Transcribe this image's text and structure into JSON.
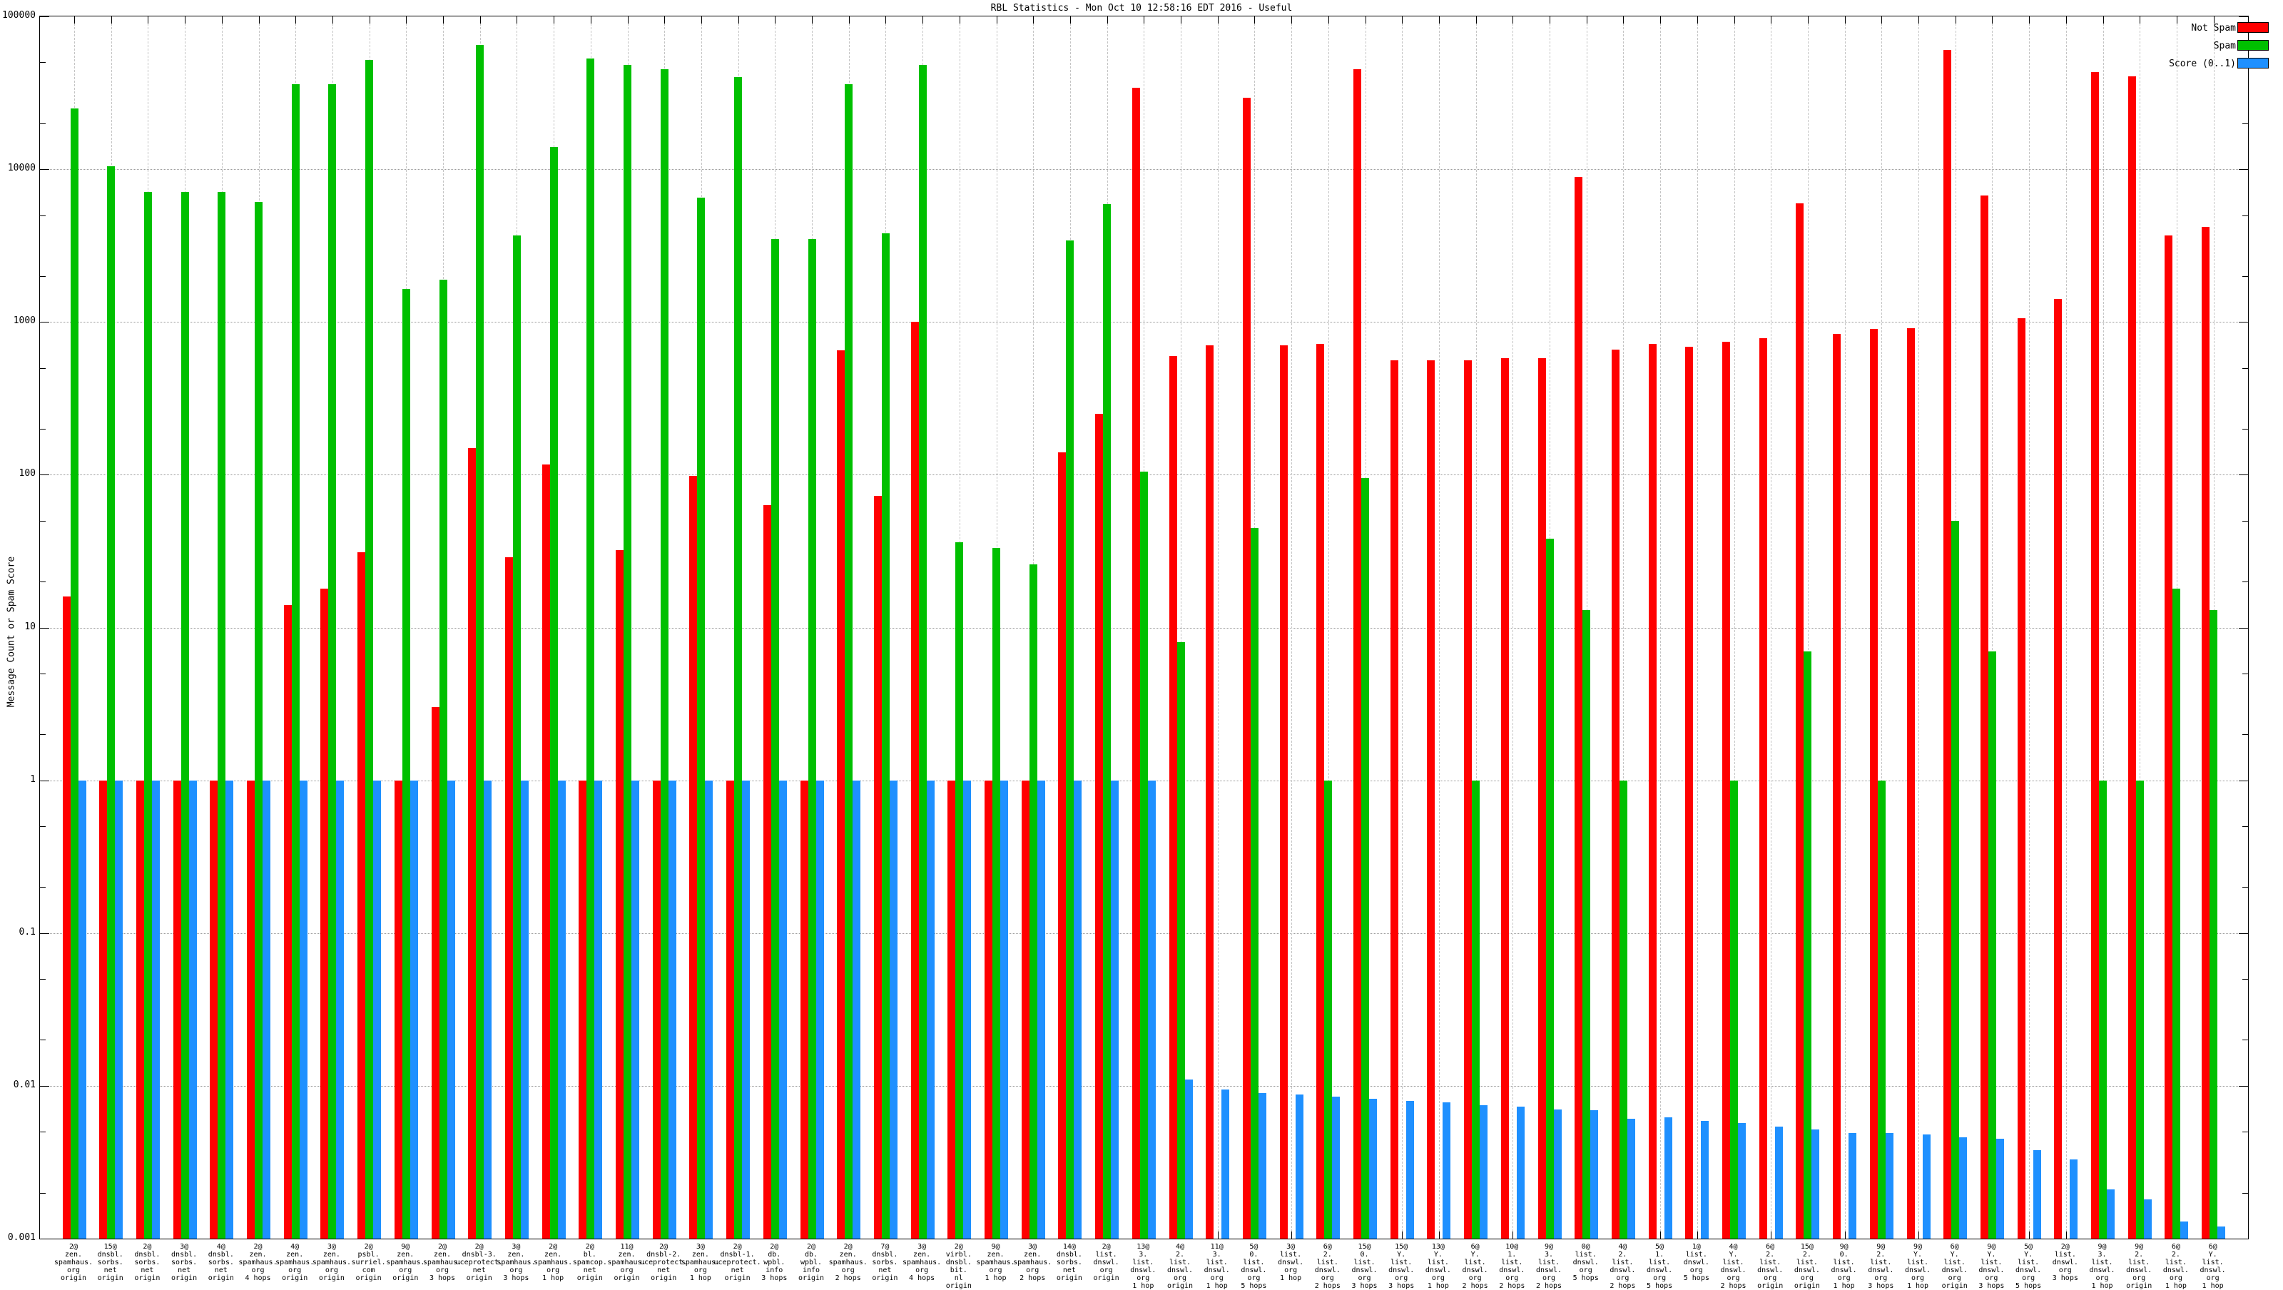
{
  "window": {
    "title": "RBL Statistics - Mon Oct 10 12:58:16 EDT 2016 - Useful"
  },
  "chart_data": {
    "type": "bar",
    "title": "RBL Statistics - Mon Oct 10 12:58:16 EDT 2016 - Useful",
    "ylabel": "Message Count or Spam Score",
    "xlabel": "",
    "yscale": "log",
    "ylim": [
      0.001,
      100000
    ],
    "ytick_labels": [
      "100000",
      "10000",
      "1000",
      "100",
      "10",
      "1",
      "0.1",
      "0.01",
      "0.001"
    ],
    "grid": true,
    "legend_position": "top-right",
    "colors": {
      "not_spam": "#ff0000",
      "spam": "#00c000",
      "score": "#1e90ff",
      "grid": "#9a9a9a"
    },
    "series": [
      {
        "name": "Not Spam",
        "key": "not_spam",
        "color": "#ff0000"
      },
      {
        "name": "Spam",
        "key": "spam",
        "color": "#00c000"
      },
      {
        "name": "Score (0..1)",
        "key": "score",
        "color": "#1e90ff"
      }
    ],
    "groups": [
      {
        "label": [
          "2@",
          "zen.",
          "spamhaus.",
          "org",
          "origin"
        ],
        "not_spam": 16,
        "spam": 25000,
        "score": 1
      },
      {
        "label": [
          "15@",
          "dnsbl.",
          "sorbs.",
          "net",
          "origin"
        ],
        "not_spam": 1,
        "spam": 10500,
        "score": 1
      },
      {
        "label": [
          "2@",
          "dnsbl.",
          "sorbs.",
          "net",
          "origin"
        ],
        "not_spam": 1,
        "spam": 7100,
        "score": 1
      },
      {
        "label": [
          "3@",
          "dnsbl.",
          "sorbs.",
          "net",
          "origin"
        ],
        "not_spam": 1,
        "spam": 7100,
        "score": 1
      },
      {
        "label": [
          "4@",
          "dnsbl.",
          "sorbs.",
          "net",
          "origin"
        ],
        "not_spam": 1,
        "spam": 7100,
        "score": 1
      },
      {
        "label": [
          "2@",
          "zen.",
          "spamhaus.",
          "org",
          "4 hops"
        ],
        "not_spam": 1,
        "spam": 6100,
        "score": 1
      },
      {
        "label": [
          "4@",
          "zen.",
          "spamhaus.",
          "org",
          "origin"
        ],
        "not_spam": 14,
        "spam": 36000,
        "score": 1
      },
      {
        "label": [
          "3@",
          "zen.",
          "spamhaus.",
          "org",
          "origin"
        ],
        "not_spam": 18,
        "spam": 36000,
        "score": 1
      },
      {
        "label": [
          "2@",
          "psbl.",
          "surriel.",
          "com",
          "origin"
        ],
        "not_spam": 31,
        "spam": 52000,
        "score": 1
      },
      {
        "label": [
          "9@",
          "zen.",
          "spamhaus.",
          "org",
          "origin"
        ],
        "not_spam": 1,
        "spam": 1650,
        "score": 1
      },
      {
        "label": [
          "2@",
          "zen.",
          "spamhaus.",
          "org",
          "3 hops"
        ],
        "not_spam": 3,
        "spam": 1900,
        "score": 1
      },
      {
        "label": [
          "2@",
          "dnsbl-3.",
          "uceprotect.",
          "net",
          "origin"
        ],
        "not_spam": 150,
        "spam": 65000,
        "score": 1
      },
      {
        "label": [
          "3@",
          "zen.",
          "spamhaus.",
          "org",
          "3 hops"
        ],
        "not_spam": 29,
        "spam": 3700,
        "score": 1
      },
      {
        "label": [
          "2@",
          "zen.",
          "spamhaus.",
          "org",
          "1 hop"
        ],
        "not_spam": 117,
        "spam": 14000,
        "score": 1
      },
      {
        "label": [
          "2@",
          "bl.",
          "spamcop.",
          "net",
          "origin"
        ],
        "not_spam": 1,
        "spam": 53000,
        "score": 1
      },
      {
        "label": [
          "11@",
          "zen.",
          "spamhaus.",
          "org",
          "origin"
        ],
        "not_spam": 32,
        "spam": 48000,
        "score": 1
      },
      {
        "label": [
          "2@",
          "dnsbl-2.",
          "uceprotect.",
          "net",
          "origin"
        ],
        "not_spam": 1,
        "spam": 45000,
        "score": 1
      },
      {
        "label": [
          "3@",
          "zen.",
          "spamhaus.",
          "org",
          "1 hop"
        ],
        "not_spam": 98,
        "spam": 6500,
        "score": 1
      },
      {
        "label": [
          "2@",
          "dnsbl-1.",
          "uceprotect.",
          "net",
          "origin"
        ],
        "not_spam": 1,
        "spam": 40000,
        "score": 1
      },
      {
        "label": [
          "2@",
          "db.",
          "wpbl.",
          "info",
          "3 hops"
        ],
        "not_spam": 63,
        "spam": 3500,
        "score": 1
      },
      {
        "label": [
          "2@",
          "db.",
          "wpbl.",
          "info",
          "origin"
        ],
        "not_spam": 1,
        "spam": 3500,
        "score": 1
      },
      {
        "label": [
          "2@",
          "zen.",
          "spamhaus.",
          "org",
          "2 hops"
        ],
        "not_spam": 650,
        "spam": 36000,
        "score": 1
      },
      {
        "label": [
          "7@",
          "dnsbl.",
          "sorbs.",
          "net",
          "origin"
        ],
        "not_spam": 73,
        "spam": 3800,
        "score": 1
      },
      {
        "label": [
          "3@",
          "zen.",
          "spamhaus.",
          "org",
          "4 hops"
        ],
        "not_spam": 1000,
        "spam": 48000,
        "score": 1
      },
      {
        "label": [
          "2@",
          "virbl.",
          "dnsbl.",
          "bit.",
          "nl",
          "origin"
        ],
        "not_spam": 1,
        "spam": 36,
        "score": 1
      },
      {
        "label": [
          "9@",
          "zen.",
          "spamhaus.",
          "org",
          "1 hop"
        ],
        "not_spam": 1,
        "spam": 33,
        "score": 1
      },
      {
        "label": [
          "3@",
          "zen.",
          "spamhaus.",
          "org",
          "2 hops"
        ],
        "not_spam": 1,
        "spam": 26,
        "score": 1
      },
      {
        "label": [
          "14@",
          "dnsbl.",
          "sorbs.",
          "net",
          "origin"
        ],
        "not_spam": 140,
        "spam": 3400,
        "score": 1
      },
      {
        "label": [
          "2@",
          "list.",
          "dnswl.",
          "org",
          "origin"
        ],
        "not_spam": 250,
        "spam": 5900,
        "score": 1
      },
      {
        "label": [
          "13@",
          "3.",
          "list.",
          "dnswl.",
          "org",
          "1 hop"
        ],
        "not_spam": 34000,
        "spam": 105,
        "score": 1
      },
      {
        "label": [
          "4@",
          "2.",
          "list.",
          "dnswl.",
          "org",
          "origin"
        ],
        "not_spam": 600,
        "spam": 8,
        "score": 0.011
      },
      {
        "label": [
          "11@",
          "3.",
          "list.",
          "dnswl.",
          "org",
          "1 hop"
        ],
        "not_spam": 700,
        "spam": 0,
        "score": 0.0095
      },
      {
        "label": [
          "5@",
          "0.",
          "list.",
          "dnswl.",
          "org",
          "5 hops"
        ],
        "not_spam": 29500,
        "spam": 45,
        "score": 0.009
      },
      {
        "label": [
          "3@",
          "list.",
          "dnswl.",
          "org",
          "1 hop"
        ],
        "not_spam": 700,
        "spam": 0,
        "score": 0.0088
      },
      {
        "label": [
          "6@",
          "2.",
          "list.",
          "dnswl.",
          "org",
          "2 hops"
        ],
        "not_spam": 720,
        "spam": 1,
        "score": 0.0085
      },
      {
        "label": [
          "15@",
          "0.",
          "list.",
          "dnswl.",
          "org",
          "3 hops"
        ],
        "not_spam": 45000,
        "spam": 95,
        "score": 0.0082
      },
      {
        "label": [
          "15@",
          "Y.",
          "list.",
          "dnswl.",
          "org",
          "3 hops"
        ],
        "not_spam": 560,
        "spam": 0,
        "score": 0.008
      },
      {
        "label": [
          "13@",
          "Y.",
          "list.",
          "dnswl.",
          "org",
          "1 hop"
        ],
        "not_spam": 560,
        "spam": 0,
        "score": 0.0078
      },
      {
        "label": [
          "6@",
          "Y.",
          "list.",
          "dnswl.",
          "org",
          "2 hops"
        ],
        "not_spam": 560,
        "spam": 1,
        "score": 0.0075
      },
      {
        "label": [
          "10@",
          "1.",
          "list.",
          "dnswl.",
          "org",
          "2 hops"
        ],
        "not_spam": 580,
        "spam": 0,
        "score": 0.0073
      },
      {
        "label": [
          "9@",
          "3.",
          "list.",
          "dnswl.",
          "org",
          "2 hops"
        ],
        "not_spam": 580,
        "spam": 38,
        "score": 0.007
      },
      {
        "label": [
          "0@",
          "list.",
          "dnswl.",
          "org",
          "5 hops"
        ],
        "not_spam": 8900,
        "spam": 13,
        "score": 0.0069
      },
      {
        "label": [
          "4@",
          "2.",
          "list.",
          "dnswl.",
          "org",
          "2 hops"
        ],
        "not_spam": 660,
        "spam": 1,
        "score": 0.0061
      },
      {
        "label": [
          "5@",
          "1.",
          "list.",
          "dnswl.",
          "org",
          "5 hops"
        ],
        "not_spam": 715,
        "spam": 0,
        "score": 0.0062
      },
      {
        "label": [
          "1@",
          "list.",
          "dnswl.",
          "org",
          "5 hops"
        ],
        "not_spam": 690,
        "spam": 0,
        "score": 0.0059
      },
      {
        "label": [
          "4@",
          "Y.",
          "list.",
          "dnswl.",
          "org",
          "2 hops"
        ],
        "not_spam": 740,
        "spam": 1,
        "score": 0.0057
      },
      {
        "label": [
          "6@",
          "2.",
          "list.",
          "dnswl.",
          "org",
          "origin"
        ],
        "not_spam": 780,
        "spam": 0,
        "score": 0.0054
      },
      {
        "label": [
          "15@",
          "2.",
          "list.",
          "dnswl.",
          "org",
          "origin"
        ],
        "not_spam": 5970,
        "spam": 7,
        "score": 0.0052
      },
      {
        "label": [
          "9@",
          "0.",
          "list.",
          "dnswl.",
          "org",
          "1 hop"
        ],
        "not_spam": 836,
        "spam": 0,
        "score": 0.0049
      },
      {
        "label": [
          "9@",
          "2.",
          "list.",
          "dnswl.",
          "org",
          "3 hops"
        ],
        "not_spam": 898,
        "spam": 1,
        "score": 0.0049
      },
      {
        "label": [
          "9@",
          "Y.",
          "list.",
          "dnswl.",
          "org",
          "1 hop"
        ],
        "not_spam": 908,
        "spam": 0,
        "score": 0.0048
      },
      {
        "label": [
          "6@",
          "Y.",
          "list.",
          "dnswl.",
          "org",
          "origin"
        ],
        "not_spam": 60500,
        "spam": 50,
        "score": 0.0046
      },
      {
        "label": [
          "9@",
          "Y.",
          "list.",
          "dnswl.",
          "org",
          "3 hops"
        ],
        "not_spam": 6740,
        "spam": 7,
        "score": 0.0045
      },
      {
        "label": [
          "5@",
          "Y.",
          "list.",
          "dnswl.",
          "org",
          "5 hops"
        ],
        "not_spam": 1060,
        "spam": 0,
        "score": 0.0038
      },
      {
        "label": [
          "2@",
          "list.",
          "dnswl.",
          "org",
          "3 hops"
        ],
        "not_spam": 1420,
        "spam": 0,
        "score": 0.0033
      },
      {
        "label": [
          "9@",
          "3.",
          "list.",
          "dnswl.",
          "org",
          "1 hop"
        ],
        "not_spam": 43300,
        "spam": 1,
        "score": 0.0021
      },
      {
        "label": [
          "9@",
          "2.",
          "list.",
          "dnswl.",
          "org",
          "origin"
        ],
        "not_spam": 40700,
        "spam": 1,
        "score": 0.0018
      },
      {
        "label": [
          "6@",
          "2.",
          "list.",
          "dnswl.",
          "org",
          "1 hop"
        ],
        "not_spam": 3700,
        "spam": 18,
        "score": 0.0013
      },
      {
        "label": [
          "6@",
          "Y.",
          "list.",
          "dnswl.",
          "org",
          "1 hop"
        ],
        "not_spam": 4170,
        "spam": 13,
        "score": 0.0012
      }
    ]
  }
}
